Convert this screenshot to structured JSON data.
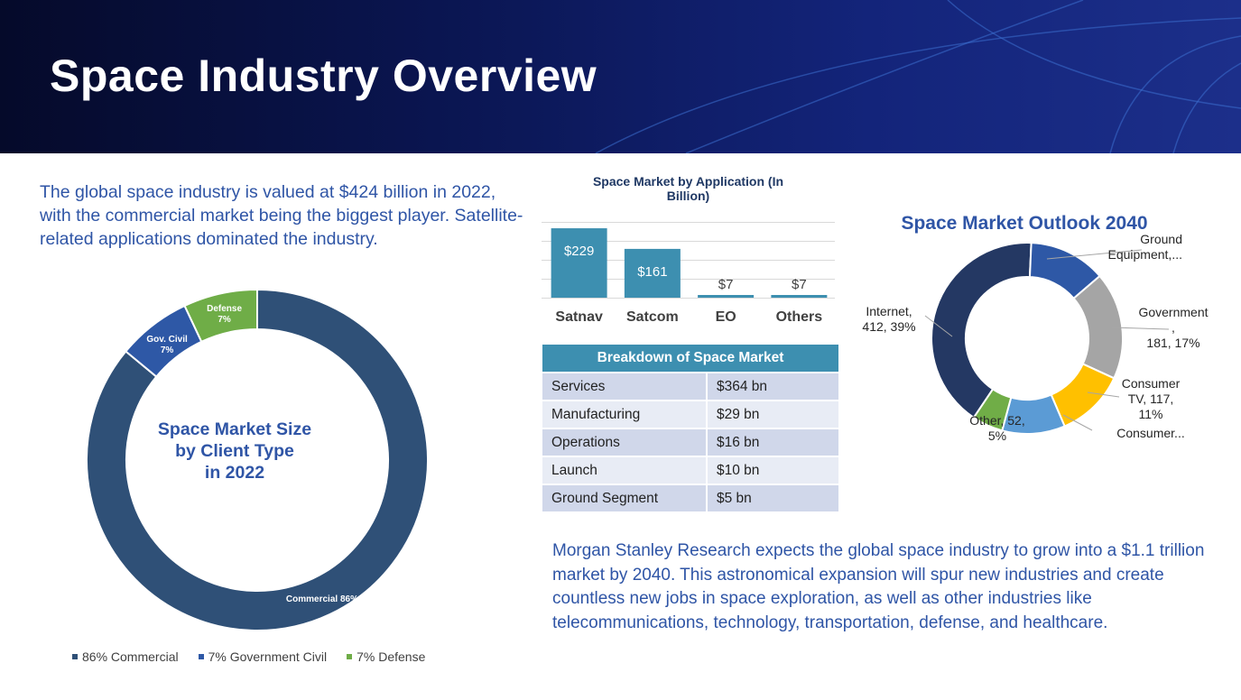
{
  "slide_title": "Space Industry Overview",
  "intro_text": "The global space industry is valued at $424 billion in 2022, with the commercial market being the biggest player. Satellite-related applications dominated the industry.",
  "outro_text": "Morgan Stanley Research expects the global space industry to grow into a $1.1 trillion market by 2040. This astronomical expansion will spur new industries and create countless new jobs in space exploration, as well as other industries like telecommunications, technology, transportation, defense, and healthcare.",
  "breakdown_table": {
    "title": "Breakdown of Space Market",
    "rows": [
      [
        "Services",
        "$364 bn"
      ],
      [
        "Manufacturing",
        "$29 bn"
      ],
      [
        "Operations",
        "$16 bn"
      ],
      [
        "Launch",
        "$10 bn"
      ],
      [
        "Ground Segment",
        "$5 bn"
      ]
    ]
  },
  "colors": {
    "banner": "#0a1550",
    "accent_text": "#2f55a6",
    "commercial": "#2f5077",
    "gov_civil": "#2e58a6",
    "defense": "#6fad47",
    "bar": "#3d8fb0",
    "table_header": "#3d8fb0"
  },
  "chart_data": [
    {
      "type": "pie",
      "style": "donut",
      "title": "Space Market Size by Client Type in 2022",
      "center_label_lines": [
        "Space Market Size",
        "by Client Type",
        "in 2022"
      ],
      "labels": [
        "Commercial",
        "Gov. Civil",
        "Defense"
      ],
      "values": [
        86,
        7,
        7
      ],
      "slice_labels": [
        "Commercial 86%",
        "Gov. Civil 7%",
        "Defense 7%"
      ],
      "colors": [
        "#2f5077",
        "#2e58a6",
        "#6fad47"
      ],
      "legend": [
        "86% Commercial",
        "7% Government Civil",
        "7% Defense"
      ],
      "legend_position": "bottom"
    },
    {
      "type": "bar",
      "title": "Space Market by Application (In Billion)",
      "title_lines": [
        "Space Market by Application (In",
        "Billion)"
      ],
      "categories": [
        "Satnav",
        "Satcom",
        "EO",
        "Others"
      ],
      "values": [
        229,
        161,
        7,
        7
      ],
      "value_labels": [
        "$229",
        "$161",
        "$7",
        "$7"
      ],
      "ylim": [
        0,
        250
      ],
      "grid": true
    },
    {
      "type": "pie",
      "style": "donut",
      "title": "Space Market Outlook 2040",
      "slices": [
        {
          "name": "Internet",
          "value": 412,
          "percent": 39,
          "color": "#243863",
          "label_lines": [
            "Internet,",
            "412, 39%"
          ]
        },
        {
          "name": "Ground Equipment",
          "value": 130,
          "percent": 12,
          "color": "#2e58a6",
          "label_lines": [
            "Ground",
            "Equipment,..."
          ]
        },
        {
          "name": "Government",
          "value": 181,
          "percent": 17,
          "color": "#a5a5a5",
          "label_lines": [
            "Government",
            ",",
            "181, 17%"
          ]
        },
        {
          "name": "Consumer TV",
          "value": 117,
          "percent": 11,
          "color": "#ffc000",
          "label_lines": [
            "Consumer",
            "TV, 117,",
            "11%"
          ]
        },
        {
          "name": "Consumer...",
          "value": 106,
          "percent": 10,
          "color": "#5b9bd5",
          "label_lines": [
            "Consumer..."
          ]
        },
        {
          "name": "Other",
          "value": 52,
          "percent": 5,
          "color": "#70ad47",
          "label_lines": [
            "Other, 52,",
            "5%"
          ]
        }
      ]
    }
  ]
}
